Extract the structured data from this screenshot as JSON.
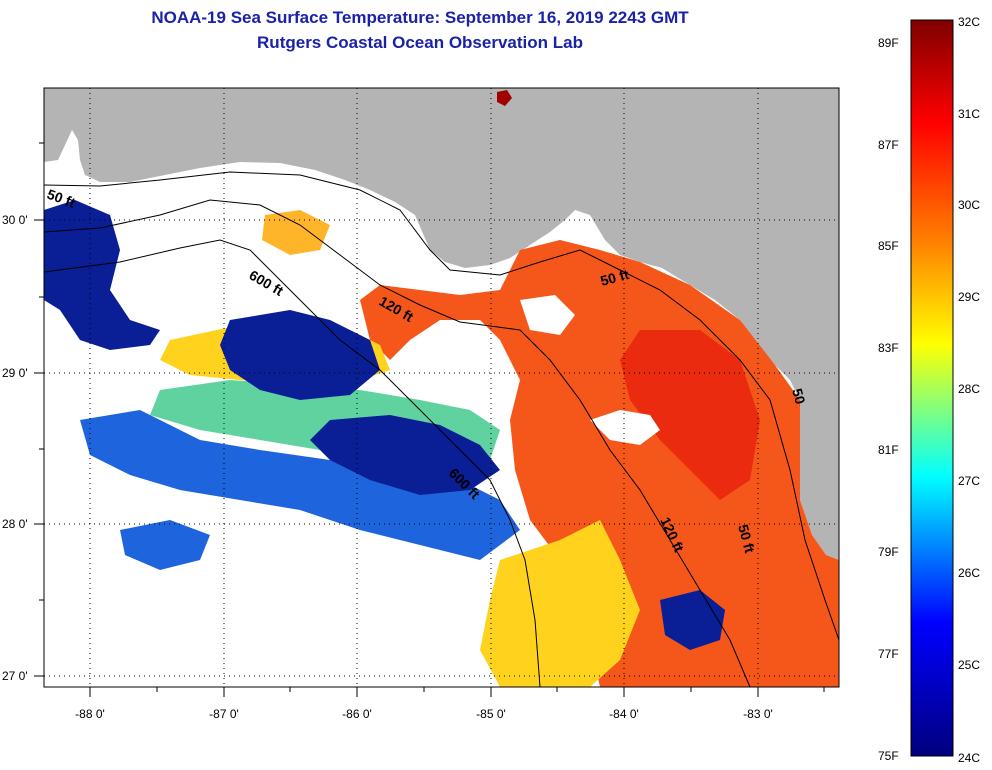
{
  "header": {
    "title": "NOAA-19 Sea Surface Temperature:  September 16, 2019 2243 GMT",
    "subtitle": "Rutgers Coastal Ocean Observation Lab"
  },
  "axes": {
    "x_ticks": [
      "-88 0'",
      "-87 0'",
      "-86 0'",
      "-85 0'",
      "-84 0'",
      "-83 0'"
    ],
    "y_ticks": [
      "30 0'",
      "29 0'",
      "28 0'",
      "27 0'"
    ]
  },
  "contours": {
    "labels": [
      "50 ft",
      "600 ft",
      "120 ft",
      "50 ft",
      "600 ft",
      "120 ft",
      "50 ft",
      "50"
    ]
  },
  "colorbar": {
    "fahrenheit": [
      "89F",
      "87F",
      "85F",
      "83F",
      "81F",
      "79F",
      "77F",
      "75F"
    ],
    "celsius": [
      "32C",
      "31C",
      "30C",
      "29C",
      "28C",
      "27C",
      "26C",
      "25C",
      "24C"
    ],
    "gradient": [
      "#7f0000",
      "#ff0000",
      "#ff7f00",
      "#ffff00",
      "#00ffff",
      "#0000ff",
      "#00007f"
    ]
  },
  "colors": {
    "land": "#b4b4b4",
    "warm_water": "#f5561a",
    "mid_water": "#ffd21e",
    "cool_water": "#1e64dc",
    "cold_water": "#0a1e96",
    "cloud_mask": "#ffffff",
    "title_text": "#1a22a8"
  }
}
